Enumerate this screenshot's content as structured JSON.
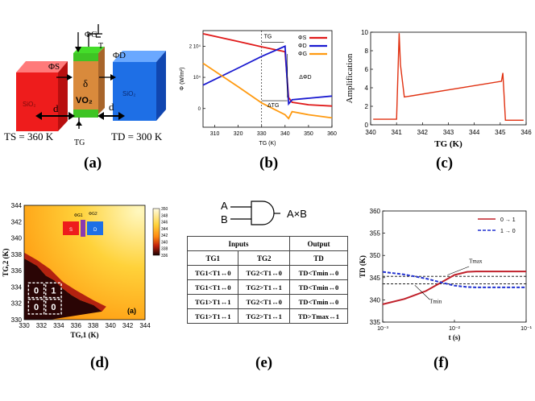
{
  "panels": {
    "a": {
      "label": "(a)",
      "left_block": "SiO₂",
      "right_block": "SiO₂",
      "center": "VO₂",
      "delta": "δ",
      "phi_s": "ΦS",
      "phi_d": "ΦD",
      "phi_g": "ΦG",
      "t_top": "T",
      "d_left": "d",
      "d_right": "d",
      "ts": "TS = 360 K",
      "tg": "TG",
      "td": "TD = 300 K",
      "colors": {
        "left": "#ee1c1c",
        "center": "#d98a3c",
        "right": "#1e6fe6",
        "bars": "#44dd2a"
      }
    },
    "b": {
      "label": "(b)",
      "ylabel": "Φ (W/m²)",
      "xlabel": "TG (K)",
      "annot_tg": "TG",
      "annot_dphi": "ΔΦD",
      "annot_dtg": "ΔTG"
    },
    "c": {
      "label": "(c)",
      "ylabel": "Amplification",
      "xlabel": "TG (K)"
    },
    "d": {
      "label": "(d)",
      "ylabel": "TG,2 (K)",
      "xlabel": "TG,1 (K)",
      "inner_label": "(a)",
      "cells": [
        "0",
        "1",
        "0",
        "0"
      ],
      "phi_g1": "ΦG1",
      "phi_g2": "ΦG2",
      "s": "S",
      "d": "D",
      "colorbar_ticks": [
        "350",
        "348",
        "346",
        "344",
        "342",
        "340",
        "338",
        "336"
      ]
    },
    "e": {
      "label": "(e)",
      "gate_a": "A",
      "gate_b": "B",
      "gate_out": "A×B",
      "head_inputs": "Inputs",
      "head_output": "Output",
      "col_tg1": "TG1",
      "col_tg2": "TG2",
      "col_td": "TD",
      "rows": [
        [
          "TG1<T1↔0",
          "TG2<T1↔0",
          "TD<Tmin↔0"
        ],
        [
          "TG1<T1↔0",
          "TG2>T1↔1",
          "TD<Tmin↔0"
        ],
        [
          "TG1>T1↔1",
          "TG2<T1↔0",
          "TD<Tmin↔0"
        ],
        [
          "TG1>T1↔1",
          "TG2>T1↔1",
          "TD>Tmax↔1"
        ]
      ]
    },
    "f": {
      "label": "(f)",
      "ylabel": "TD (K)",
      "xlabel": "t (s)",
      "legend": [
        "0 → 1",
        "1 → 0"
      ],
      "tmax": "Tmax",
      "tmin": "Tmin"
    }
  },
  "chart_data": [
    {
      "type": "line",
      "panel": "b",
      "xlabel": "TG (K)",
      "ylabel": "Φ (W/m²)",
      "xlim": [
        305,
        360
      ],
      "ylim": [
        -0.6,
        2.5
      ],
      "x_ticks": [
        310,
        320,
        330,
        340,
        350,
        360
      ],
      "y_ticks": [
        {
          "v": 2,
          "label": "2 10⁴"
        },
        {
          "v": 1,
          "label": "10⁴"
        },
        {
          "v": 0,
          "label": "0"
        }
      ],
      "legend": [
        "ΦS",
        "ΦD",
        "ΦG"
      ],
      "series": [
        {
          "name": "ΦS",
          "color": "#e01a1a",
          "x": [
            305,
            320,
            330,
            340,
            341.5,
            343,
            350,
            360
          ],
          "y": [
            2.4,
            2.15,
            1.98,
            1.82,
            0.35,
            0.2,
            0.12,
            0.08
          ]
        },
        {
          "name": "ΦD",
          "color": "#1a1ad0",
          "x": [
            305,
            320,
            330,
            340,
            341.5,
            343,
            350,
            360
          ],
          "y": [
            0.75,
            1.3,
            1.67,
            2.0,
            0.15,
            0.28,
            0.33,
            0.4
          ]
        },
        {
          "name": "ΦG",
          "color": "#ff9a10",
          "x": [
            305,
            320,
            330,
            340,
            341.5,
            343,
            350,
            360
          ],
          "y": [
            1.45,
            0.7,
            0.18,
            -0.2,
            -0.32,
            -0.1,
            -0.2,
            -0.3
          ]
        }
      ]
    },
    {
      "type": "line",
      "panel": "c",
      "xlabel": "TG (K)",
      "ylabel": "Amplification",
      "xlim": [
        340,
        346
      ],
      "ylim": [
        0,
        10
      ],
      "x_ticks": [
        340,
        341,
        342,
        343,
        344,
        345,
        346
      ],
      "y_ticks": [
        0,
        2,
        4,
        6,
        8,
        10
      ],
      "series": [
        {
          "name": "",
          "color": "#e03010",
          "x": [
            340.1,
            341,
            341.1,
            341.15,
            341.3,
            345.05,
            345.1,
            345.2,
            345.9
          ],
          "y": [
            0.6,
            0.6,
            9.9,
            6.5,
            3.0,
            4.7,
            5.6,
            0.5,
            0.5
          ]
        }
      ]
    },
    {
      "type": "heatmap",
      "panel": "d",
      "xlabel": "TG,1 (K)",
      "ylabel": "TG,2 (K)",
      "xlim": [
        330,
        344
      ],
      "ylim": [
        330,
        344
      ],
      "x_ticks": [
        330,
        332,
        334,
        336,
        338,
        340,
        342,
        344
      ],
      "y_ticks": [
        330,
        332,
        334,
        336,
        338,
        340,
        342,
        344
      ],
      "colorbar": {
        "min": 336,
        "max": 350
      }
    },
    {
      "type": "line",
      "panel": "f",
      "xlabel": "t (s)",
      "ylabel": "TD (K)",
      "xscale": "log",
      "xlim": [
        0.001,
        0.1
      ],
      "ylim": [
        335,
        360
      ],
      "x_ticks": [
        {
          "v": 0.001,
          "label": "10⁻³"
        },
        {
          "v": 0.01,
          "label": "10⁻²"
        },
        {
          "v": 0.1,
          "label": "10⁻¹"
        }
      ],
      "y_ticks": [
        335,
        340,
        345,
        350,
        355,
        360
      ],
      "hlines": [
        {
          "y": 345.3,
          "color": "#000"
        },
        {
          "y": 343.6,
          "color": "#000"
        }
      ],
      "series": [
        {
          "name": "0 → 1",
          "color": "#c0202a",
          "x": [
            0.001,
            0.002,
            0.004,
            0.007,
            0.01,
            0.015,
            0.02,
            0.04,
            0.1
          ],
          "y": [
            339,
            340.2,
            342,
            344.2,
            345.6,
            346.3,
            346.4,
            346.4,
            346.4
          ]
        },
        {
          "name": "1 → 0",
          "color": "#2030d0",
          "x": [
            0.001,
            0.002,
            0.004,
            0.007,
            0.01,
            0.015,
            0.02,
            0.04,
            0.1
          ],
          "y": [
            346.3,
            345.7,
            344.8,
            343.8,
            343.2,
            342.9,
            342.8,
            342.8,
            342.8
          ]
        }
      ]
    }
  ]
}
